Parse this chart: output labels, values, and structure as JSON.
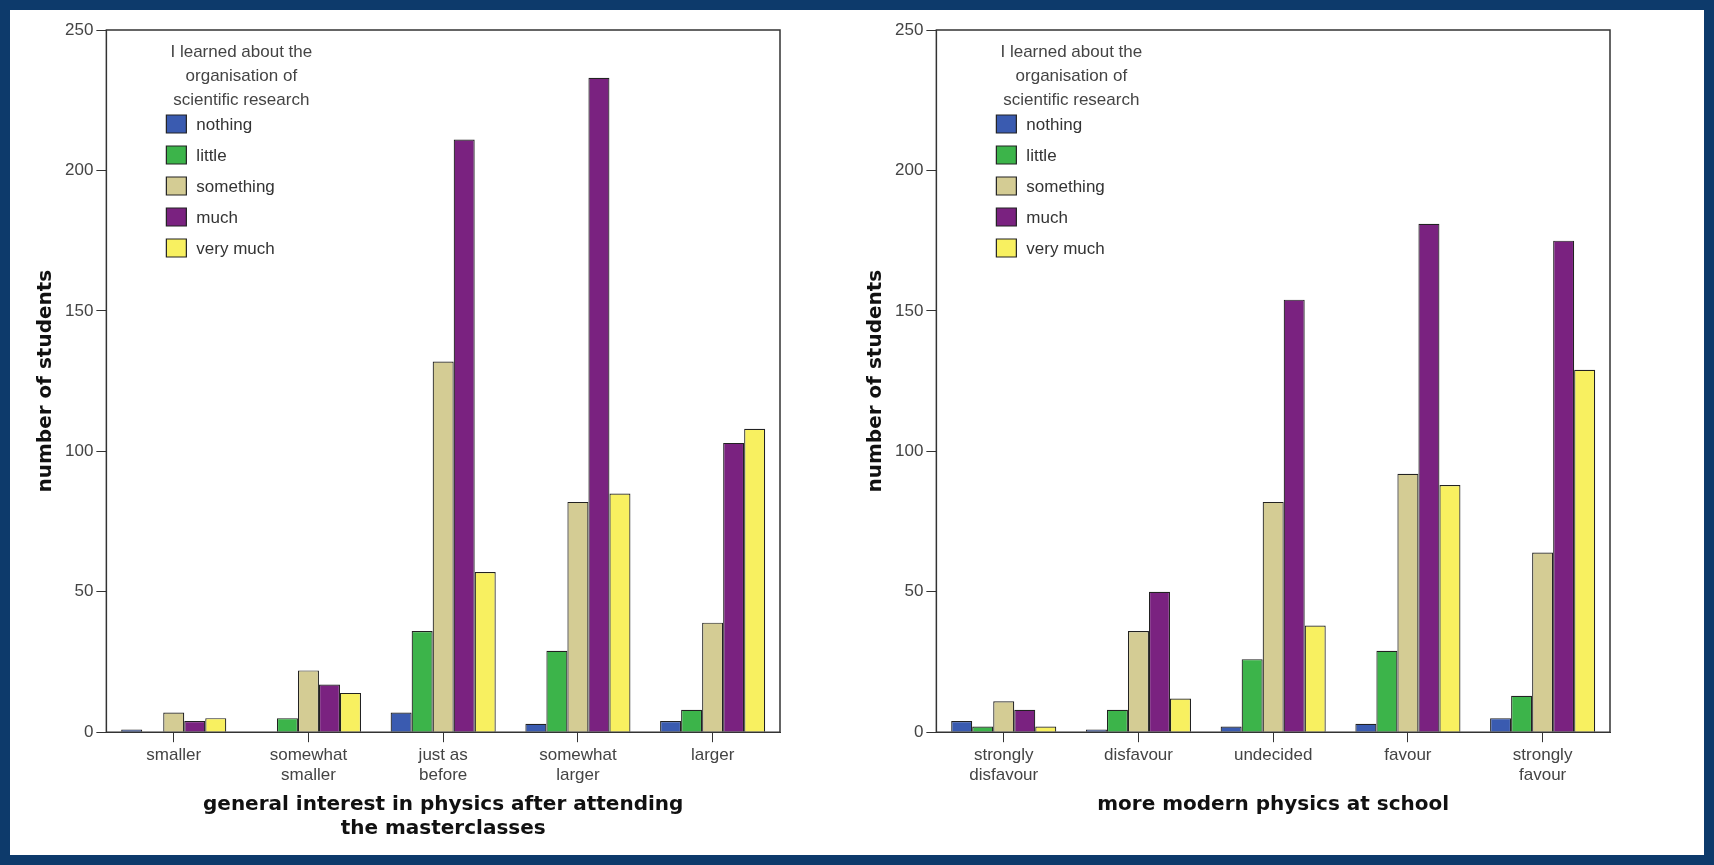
{
  "chart_data": [
    {
      "type": "bar",
      "xlabel": "general interest in physics after attending the masterclasses",
      "ylabel": "number of students",
      "legend_title": "I learned about the organisation of scientific research",
      "legend": "top left",
      "grid": false,
      "categories": [
        "smaller",
        "somewhat smaller",
        "just as before",
        "somewhat larger",
        "larger"
      ],
      "ylim": [
        0,
        250
      ],
      "yticks": [
        0,
        50,
        100,
        150,
        200,
        250
      ],
      "series": [
        {
          "name": "nothing",
          "color": "#3a5bb0",
          "values": [
            1,
            null,
            7,
            3,
            4
          ]
        },
        {
          "name": "little",
          "color": "#3cb44a",
          "values": [
            null,
            5,
            36,
            29,
            8
          ]
        },
        {
          "name": "something",
          "color": "#d4cc94",
          "values": [
            7,
            22,
            132,
            82,
            39
          ]
        },
        {
          "name": "much",
          "color": "#7a2280",
          "values": [
            4,
            17,
            211,
            233,
            103
          ]
        },
        {
          "name": "very much",
          "color": "#f8f060",
          "values": [
            5,
            14,
            57,
            85,
            108
          ]
        }
      ]
    },
    {
      "type": "bar",
      "xlabel": "more modern physics at school",
      "ylabel": "number of students",
      "legend_title": "I learned about the organisation of scientific research",
      "legend": "top left",
      "grid": false,
      "categories": [
        "strongly disfavour",
        "disfavour",
        "undecided",
        "favour",
        "strongly favour"
      ],
      "ylim": [
        0,
        250
      ],
      "yticks": [
        0,
        50,
        100,
        150,
        200,
        250
      ],
      "series": [
        {
          "name": "nothing",
          "color": "#3a5bb0",
          "values": [
            4,
            1,
            2,
            3,
            5
          ]
        },
        {
          "name": "little",
          "color": "#3cb44a",
          "values": [
            2,
            8,
            26,
            29,
            13
          ]
        },
        {
          "name": "something",
          "color": "#d4cc94",
          "values": [
            11,
            36,
            82,
            92,
            64
          ]
        },
        {
          "name": "much",
          "color": "#7a2280",
          "values": [
            8,
            50,
            154,
            181,
            175
          ]
        },
        {
          "name": "very much",
          "color": "#f8f060",
          "values": [
            2,
            12,
            38,
            88,
            129
          ]
        }
      ]
    }
  ]
}
